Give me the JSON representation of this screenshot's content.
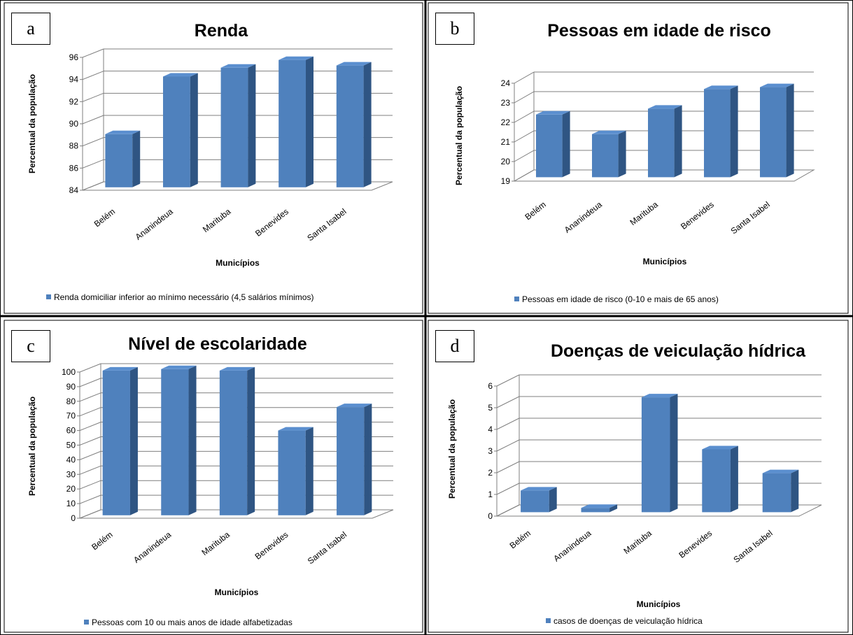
{
  "colors": {
    "bar_front": "#4f81bd",
    "bar_side": "#2f5583",
    "bar_top": "#5b8fcf",
    "grid": "#7f7f7f",
    "frame": "#000000"
  },
  "chart_data": [
    {
      "type": "bar",
      "letter": "a",
      "title": "Renda",
      "ylabel": "Percentual da população",
      "xlabel": "Municípios",
      "categories": [
        "Belém",
        "Ananindeua",
        "Marituba",
        "Benevides",
        "Santa Isabel"
      ],
      "yticks": [
        84,
        86,
        88,
        90,
        92,
        94,
        96
      ],
      "ylim": [
        84,
        96
      ],
      "series": [
        {
          "name": "Renda domiciliar inferior ao mínimo necessário (4,5 salários mínimos)",
          "values": [
            88.8,
            94.0,
            94.8,
            95.5,
            95.0
          ]
        }
      ],
      "legend": "bottom",
      "grid": true
    },
    {
      "type": "bar",
      "letter": "b",
      "title": "Pessoas em idade de risco",
      "ylabel": "Percentual da população",
      "xlabel": "Municípios",
      "categories": [
        "Belém",
        "Ananindeua",
        "Marituba",
        "Benevides",
        "Santa Isabel"
      ],
      "yticks": [
        19,
        20,
        21,
        22,
        23,
        24
      ],
      "ylim": [
        19,
        24
      ],
      "series": [
        {
          "name": "Pessoas em idade de risco (0-10 e mais de 65 anos)",
          "values": [
            22.2,
            21.2,
            22.5,
            23.5,
            23.6
          ]
        }
      ],
      "legend": "bottom",
      "grid": true
    },
    {
      "type": "bar",
      "letter": "c",
      "title": "Nível de escolaridade",
      "ylabel": "Percentual da população",
      "xlabel": "Municípios",
      "categories": [
        "Belém",
        "Ananindeua",
        "Marituba",
        "Benevides",
        "Santa Isabel"
      ],
      "yticks": [
        0,
        10,
        20,
        30,
        40,
        50,
        60,
        70,
        80,
        90,
        100
      ],
      "ylim": [
        0,
        100
      ],
      "series": [
        {
          "name": "Pessoas com 10 ou mais anos de idade alfabetizadas",
          "values": [
            99,
            100,
            99,
            58,
            74
          ]
        }
      ],
      "legend": "bottom",
      "grid": true
    },
    {
      "type": "bar",
      "letter": "d",
      "title": "Doenças de veiculação hídrica",
      "ylabel": "Percentual da população",
      "xlabel": "Municípios",
      "categories": [
        "Belém",
        "Ananindeua",
        "Marituba",
        "Benevides",
        "Santa Isabel"
      ],
      "yticks": [
        0,
        1,
        2,
        3,
        4,
        5,
        6
      ],
      "ylim": [
        0,
        6
      ],
      "series": [
        {
          "name": "casos de doenças de veiculação hídrica",
          "values": [
            1.0,
            0.2,
            5.3,
            2.9,
            1.8
          ]
        }
      ],
      "legend": "bottom",
      "grid": true
    }
  ]
}
